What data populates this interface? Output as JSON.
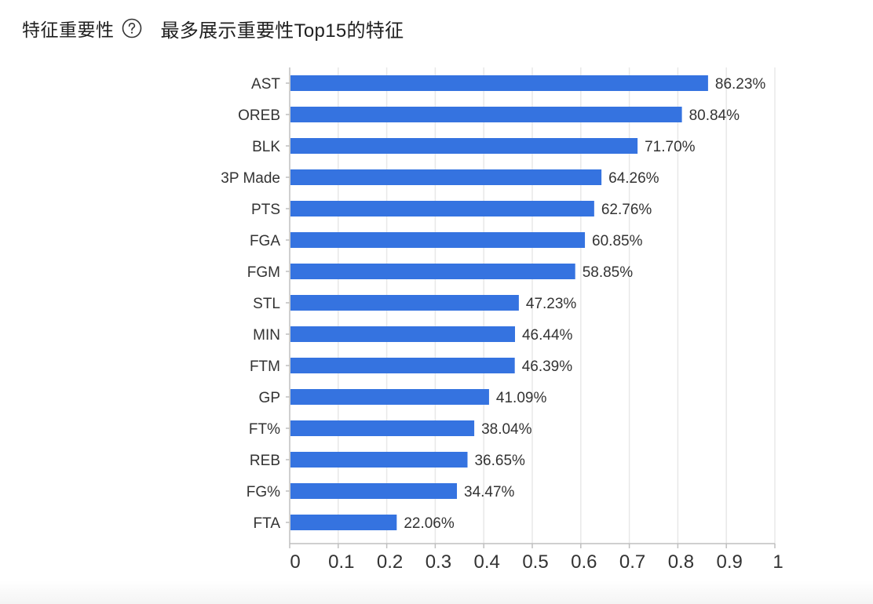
{
  "header": {
    "title": "特征重要性",
    "help_icon": "question-circle-icon",
    "subtitle": "最多展示重要性Top15的特征"
  },
  "chart_data": {
    "type": "bar",
    "orientation": "horizontal",
    "categories": [
      "AST",
      "OREB",
      "BLK",
      "3P Made",
      "PTS",
      "FGA",
      "FGM",
      "STL",
      "MIN",
      "FTM",
      "GP",
      "FT%",
      "REB",
      "FG%",
      "FTA"
    ],
    "values": [
      0.8623,
      0.8084,
      0.717,
      0.6426,
      0.6276,
      0.6085,
      0.5885,
      0.4723,
      0.4644,
      0.4639,
      0.4109,
      0.3804,
      0.3665,
      0.3447,
      0.2206
    ],
    "value_labels": [
      "86.23%",
      "80.84%",
      "71.70%",
      "64.26%",
      "62.76%",
      "60.85%",
      "58.85%",
      "47.23%",
      "46.44%",
      "46.39%",
      "41.09%",
      "38.04%",
      "36.65%",
      "34.47%",
      "22.06%"
    ],
    "xticks": [
      "0",
      "0.1",
      "0.2",
      "0.3",
      "0.4",
      "0.5",
      "0.6",
      "0.7",
      "0.8",
      "0.9",
      "1"
    ],
    "xlim": [
      0,
      1
    ],
    "grid": "vertical",
    "bar_color": "#3573e0",
    "grid_color": "#e8e8e8",
    "axis_color": "#bfbfbf"
  }
}
